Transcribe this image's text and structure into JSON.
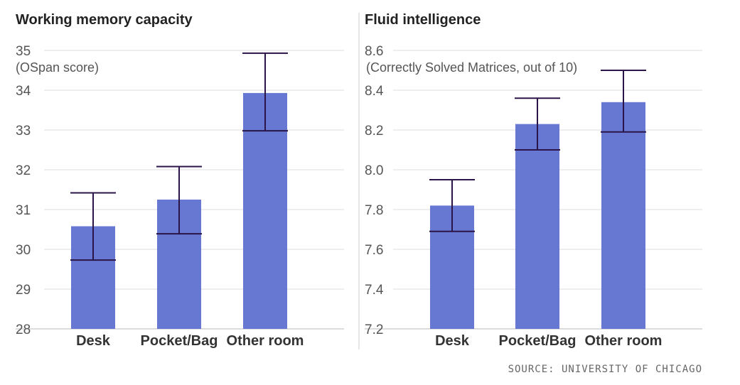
{
  "colors": {
    "bar": "#6678d1",
    "error_bar": "#2b1447",
    "grid": "#dddddd"
  },
  "source": "SOURCE: UNIVERSITY OF CHICAGO",
  "chart_data": [
    {
      "type": "bar",
      "title": "Working memory capacity",
      "ylabel": "(OSpan score)",
      "categories": [
        "Desk",
        "Pocket/Bag",
        "Other room"
      ],
      "values": [
        30.58,
        31.25,
        33.93
      ],
      "error_low": [
        29.73,
        30.39,
        32.98
      ],
      "error_high": [
        31.42,
        32.08,
        34.93
      ],
      "ylim": [
        28,
        35
      ],
      "yticks": [
        "28",
        "29",
        "30",
        "31",
        "32",
        "33",
        "34",
        "35"
      ],
      "grid": true
    },
    {
      "type": "bar",
      "title": "Fluid intelligence",
      "ylabel": "(Correctly Solved Matrices, out of 10)",
      "categories": [
        "Desk",
        "Pocket/Bag",
        "Other room"
      ],
      "values": [
        7.82,
        8.23,
        8.34
      ],
      "error_low": [
        7.69,
        8.1,
        8.19
      ],
      "error_high": [
        7.95,
        8.36,
        8.5
      ],
      "ylim": [
        7.2,
        8.6
      ],
      "yticks": [
        "7.2",
        "7.4",
        "7.6",
        "7.8",
        "8.0",
        "8.2",
        "8.4",
        "8.6"
      ],
      "grid": true
    }
  ]
}
